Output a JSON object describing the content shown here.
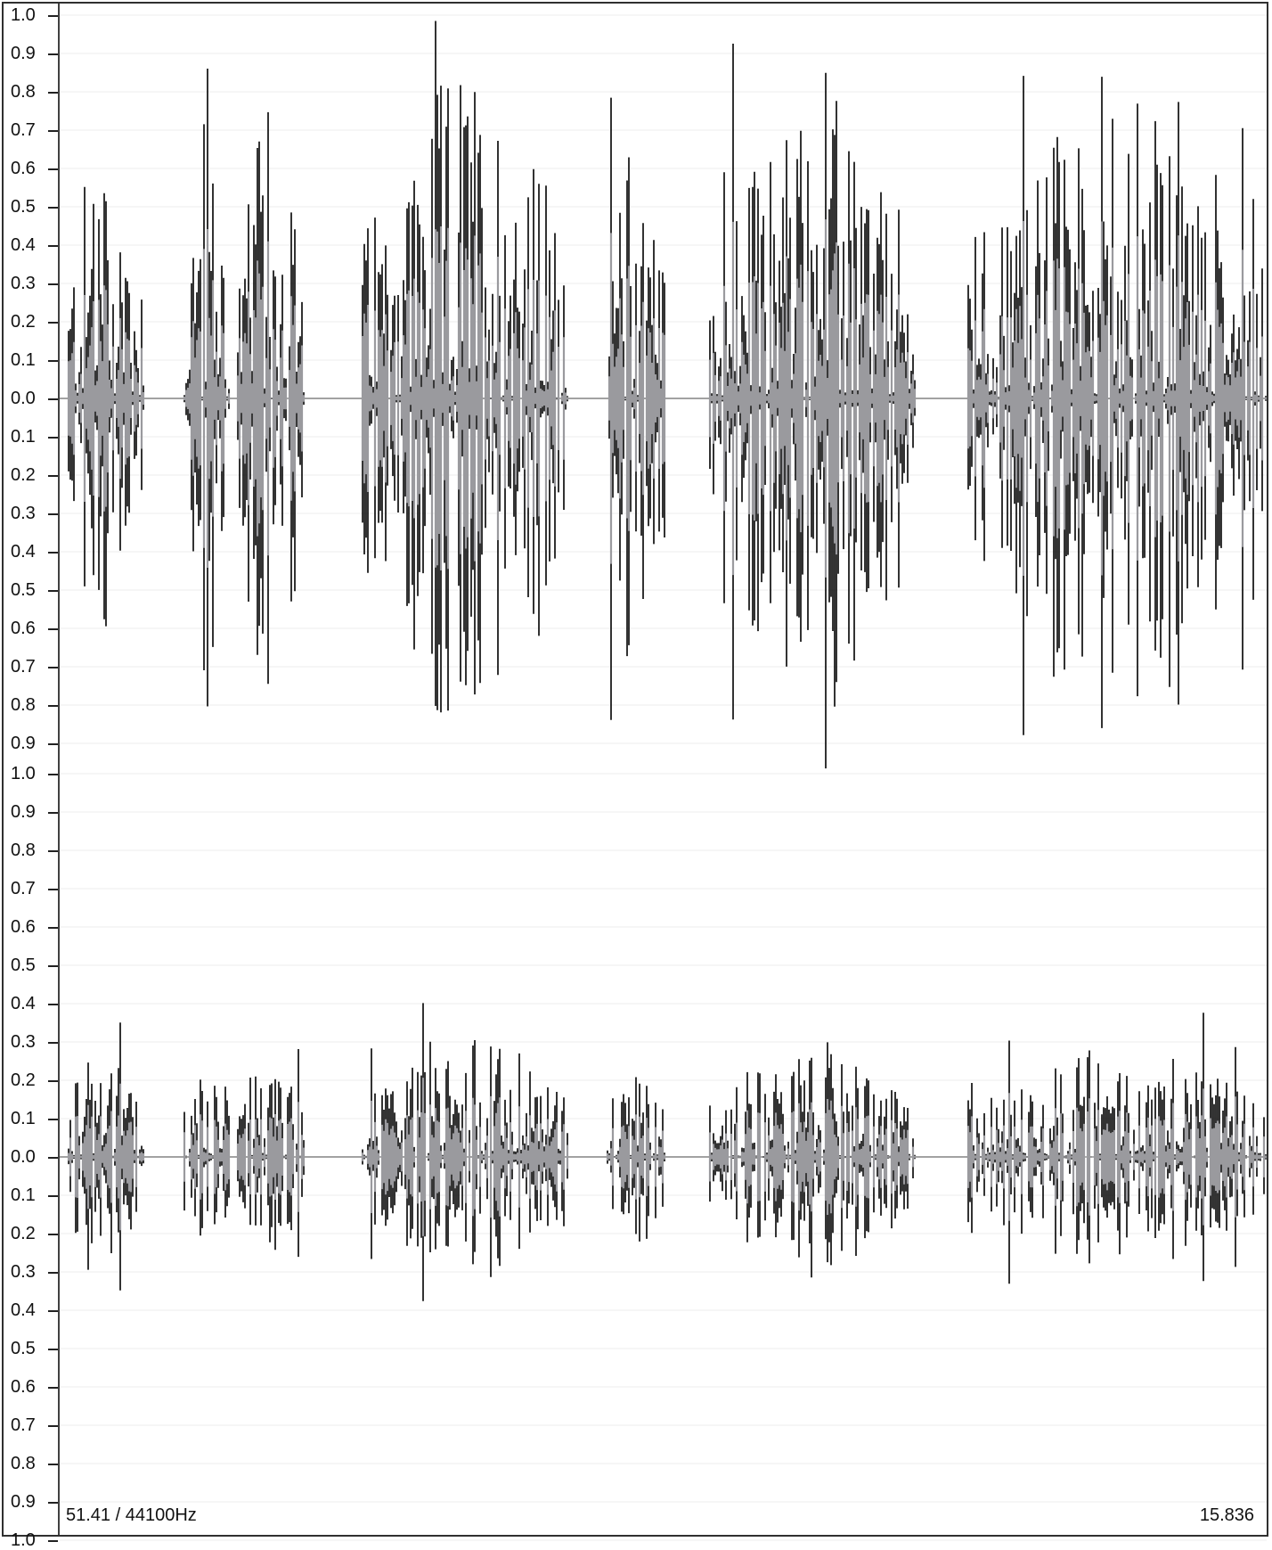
{
  "ruler": {
    "channel_1_labels": [
      "1.0",
      "0.9",
      "0.8",
      "0.7",
      "0.6",
      "0.5",
      "0.4",
      "0.3",
      "0.2",
      "0.1",
      "0.0",
      "0.1",
      "0.2",
      "0.3",
      "0.4",
      "0.5",
      "0.6",
      "0.7",
      "0.8",
      "0.9"
    ],
    "channel_2_labels": [
      "1.0",
      "0.9",
      "0.8",
      "0.7",
      "0.6",
      "0.5",
      "0.4",
      "0.3",
      "0.2",
      "0.1",
      "0.0",
      "0.1",
      "0.2",
      "0.3",
      "0.4",
      "0.5",
      "0.6",
      "0.7",
      "0.8",
      "0.9",
      "1.0"
    ]
  },
  "footer": {
    "zoom_rate": "51.41 / 44100Hz",
    "position": "15.836"
  },
  "colors": {
    "wave_outer": "#000000",
    "wave_inner": "#9a9a9e",
    "gridline": "#eeeeee",
    "border": "#303030"
  }
}
